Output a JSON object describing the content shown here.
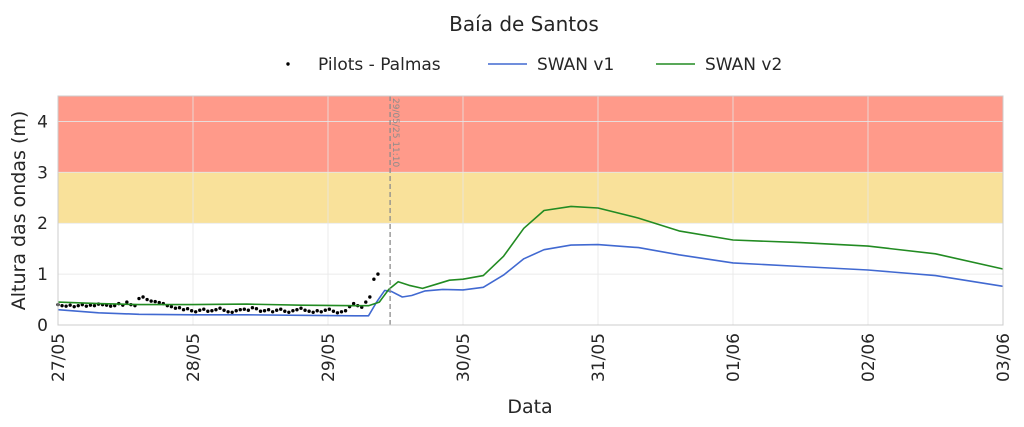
{
  "chart_data": {
    "type": "line",
    "title": "Baía de Santos",
    "xlabel": "Data",
    "ylabel": "Altura das ondas (m)",
    "xlim": [
      0,
      7
    ],
    "ylim": [
      0,
      4.5
    ],
    "x_ticks": [
      {
        "x": 0,
        "label": "27/05"
      },
      {
        "x": 1,
        "label": "28/05"
      },
      {
        "x": 2,
        "label": "29/05"
      },
      {
        "x": 3,
        "label": "30/05"
      },
      {
        "x": 4,
        "label": "31/05"
      },
      {
        "x": 5,
        "label": "01/06"
      },
      {
        "x": 6,
        "label": "02/06"
      },
      {
        "x": 7,
        "label": "03/06"
      }
    ],
    "y_ticks": [
      0,
      1,
      2,
      3,
      4
    ],
    "grid": true,
    "legend_position": "top-center",
    "bands": [
      {
        "y0": 2,
        "y1": 3,
        "color": "#f9e19a"
      },
      {
        "y0": 3,
        "y1": 4.5,
        "color": "#ff9a8a"
      }
    ],
    "marker": {
      "x": 2.46,
      "label": "29/05/25 11:10",
      "color": "#8c8c8c"
    },
    "legend": [
      {
        "name": "Pilots - Palmas",
        "kind": "dot",
        "color": "#000000"
      },
      {
        "name": "SWAN v1",
        "kind": "line",
        "color": "#4169d1"
      },
      {
        "name": "SWAN v2",
        "kind": "line",
        "color": "#228b22"
      }
    ],
    "series": [
      {
        "name": "Pilots - Palmas",
        "type": "scatter",
        "color": "#000000",
        "x": [
          0.0,
          0.03,
          0.06,
          0.09,
          0.12,
          0.15,
          0.18,
          0.21,
          0.24,
          0.27,
          0.3,
          0.33,
          0.36,
          0.39,
          0.42,
          0.45,
          0.48,
          0.51,
          0.54,
          0.57,
          0.6,
          0.63,
          0.66,
          0.69,
          0.72,
          0.75,
          0.78,
          0.81,
          0.84,
          0.87,
          0.9,
          0.93,
          0.96,
          0.99,
          1.02,
          1.05,
          1.08,
          1.11,
          1.14,
          1.17,
          1.2,
          1.23,
          1.26,
          1.29,
          1.32,
          1.35,
          1.38,
          1.41,
          1.44,
          1.47,
          1.5,
          1.53,
          1.56,
          1.59,
          1.62,
          1.65,
          1.68,
          1.71,
          1.74,
          1.77,
          1.8,
          1.83,
          1.86,
          1.89,
          1.92,
          1.95,
          1.98,
          2.01,
          2.04,
          2.07,
          2.1,
          2.13,
          2.16,
          2.19,
          2.22,
          2.25,
          2.28,
          2.31,
          2.34,
          2.37
        ],
        "y": [
          0.4,
          0.38,
          0.37,
          0.39,
          0.36,
          0.38,
          0.4,
          0.37,
          0.39,
          0.38,
          0.41,
          0.4,
          0.39,
          0.37,
          0.38,
          0.42,
          0.39,
          0.45,
          0.4,
          0.38,
          0.52,
          0.55,
          0.5,
          0.47,
          0.46,
          0.44,
          0.42,
          0.38,
          0.36,
          0.33,
          0.34,
          0.3,
          0.32,
          0.28,
          0.26,
          0.29,
          0.31,
          0.27,
          0.28,
          0.3,
          0.33,
          0.29,
          0.26,
          0.25,
          0.28,
          0.3,
          0.31,
          0.29,
          0.34,
          0.32,
          0.27,
          0.28,
          0.3,
          0.26,
          0.29,
          0.31,
          0.27,
          0.25,
          0.28,
          0.3,
          0.33,
          0.29,
          0.27,
          0.25,
          0.28,
          0.26,
          0.29,
          0.31,
          0.27,
          0.24,
          0.26,
          0.28,
          0.36,
          0.42,
          0.38,
          0.35,
          0.45,
          0.55,
          0.9,
          1.0
        ]
      },
      {
        "name": "SWAN v1",
        "type": "line",
        "color": "#4169d1",
        "x": [
          0,
          0.3,
          0.6,
          1.0,
          1.4,
          1.8,
          2.2,
          2.3,
          2.36,
          2.42,
          2.47,
          2.55,
          2.62,
          2.72,
          2.85,
          3.0,
          3.15,
          3.3,
          3.45,
          3.6,
          3.8,
          4.0,
          4.3,
          4.6,
          5.0,
          5.5,
          6.0,
          6.5,
          7.0
        ],
        "y": [
          0.3,
          0.24,
          0.21,
          0.2,
          0.2,
          0.19,
          0.18,
          0.18,
          0.45,
          0.68,
          0.66,
          0.55,
          0.58,
          0.67,
          0.7,
          0.69,
          0.74,
          0.98,
          1.3,
          1.48,
          1.57,
          1.58,
          1.52,
          1.38,
          1.22,
          1.15,
          1.08,
          0.97,
          0.76
        ]
      },
      {
        "name": "SWAN v2",
        "type": "line",
        "color": "#228b22",
        "x": [
          0,
          0.3,
          0.6,
          1.0,
          1.4,
          1.8,
          2.2,
          2.3,
          2.38,
          2.45,
          2.52,
          2.6,
          2.7,
          2.8,
          2.9,
          3.0,
          3.15,
          3.3,
          3.45,
          3.6,
          3.8,
          4.0,
          4.3,
          4.6,
          5.0,
          5.5,
          6.0,
          6.5,
          7.0
        ],
        "y": [
          0.45,
          0.42,
          0.4,
          0.4,
          0.41,
          0.39,
          0.38,
          0.38,
          0.45,
          0.7,
          0.85,
          0.78,
          0.72,
          0.8,
          0.88,
          0.9,
          0.97,
          1.35,
          1.9,
          2.25,
          2.33,
          2.3,
          2.1,
          1.85,
          1.67,
          1.62,
          1.55,
          1.4,
          1.1
        ]
      }
    ]
  }
}
